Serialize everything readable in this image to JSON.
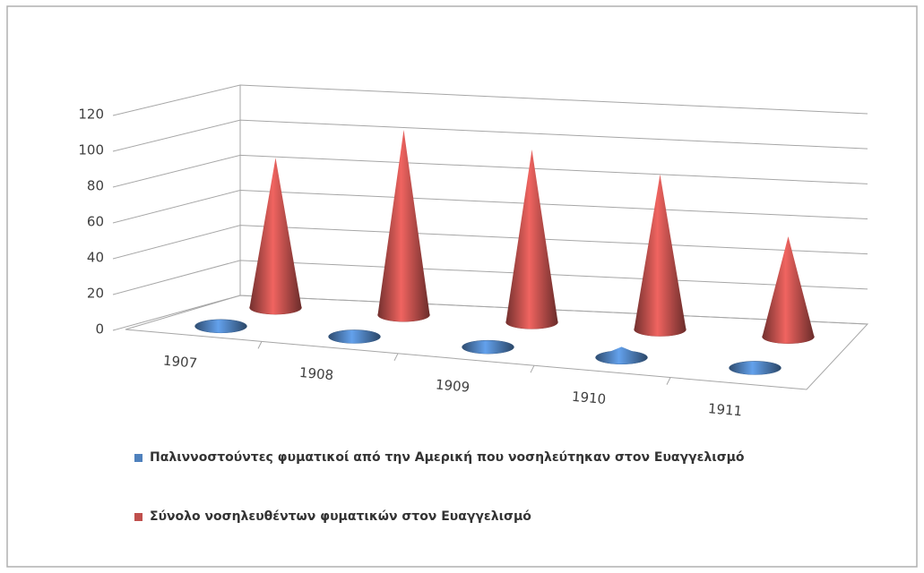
{
  "chart_data": {
    "type": "cone",
    "categories": [
      "1907",
      "1908",
      "1909",
      "1910",
      "1911"
    ],
    "series": [
      {
        "name": "Παλιννοστούντες φυματικοί από την Αμερική που νοσηλεύτηκαν στον Ευαγγελισμό",
        "color": "#4f81bd",
        "values": [
          2,
          1,
          1,
          6,
          1
        ]
      },
      {
        "name": "Σύνολο νοσηλευθέντων φυματικών στον Ευαγγελισμό",
        "color": "#c0504d",
        "values": [
          85,
          105,
          98,
          88,
          57
        ]
      }
    ],
    "ylim": [
      0,
      120
    ],
    "yticks": [
      0,
      20,
      40,
      60,
      80,
      100,
      120
    ],
    "grid": true
  }
}
